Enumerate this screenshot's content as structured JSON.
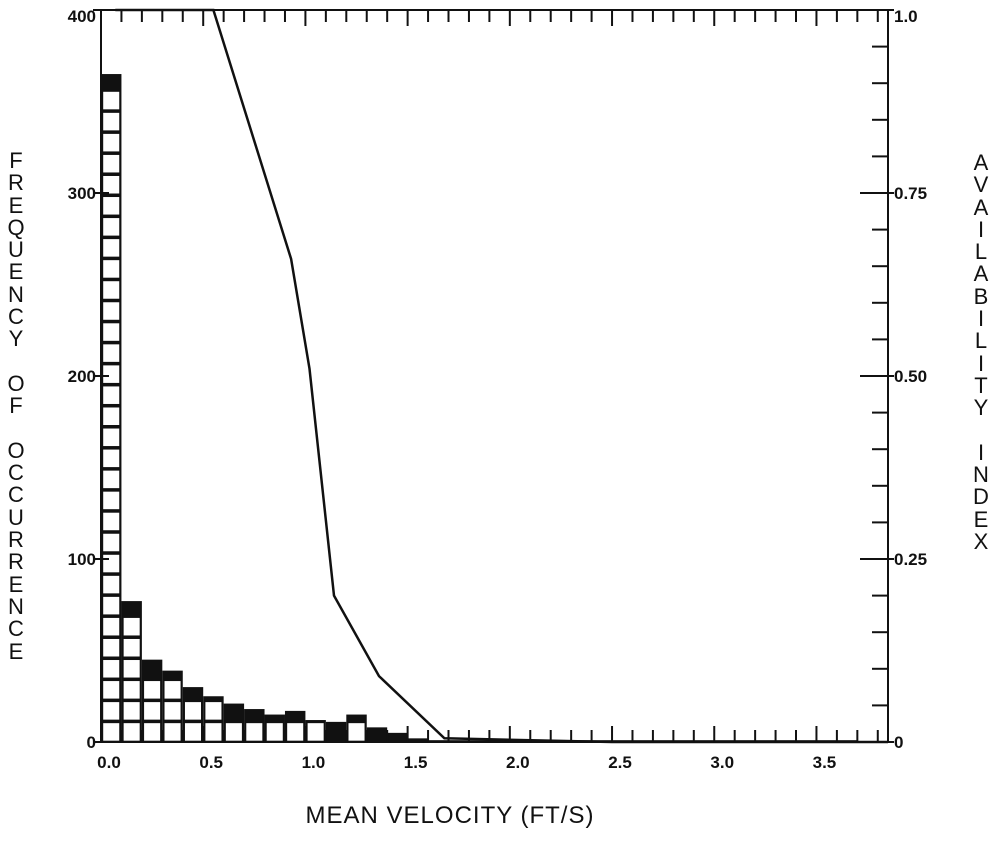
{
  "chart_data": {
    "type": "bar",
    "xlabel": "MEAN VELOCITY (FT/S)",
    "ylabel_left": "FREQUENCY OF OCCURRENCE",
    "ylabel_right": "AVAILABILITY INDEX",
    "x_range": [
      0.0,
      3.85
    ],
    "ylim_left": [
      0,
      400
    ],
    "ylim_right": [
      0,
      1.0
    ],
    "x_ticks": [
      "0.0",
      "0.5",
      "1.0",
      "1.5",
      "2.0",
      "2.5",
      "3.0",
      "3.5"
    ],
    "y_left_ticks": [
      "0",
      "100",
      "200",
      "300",
      "400"
    ],
    "y_right_ticks": [
      "0",
      "0.25",
      "0.50",
      "0.75",
      "1.0"
    ],
    "histogram": {
      "bin_width": 0.1,
      "bins": [
        {
          "x": 0.0,
          "frequency": 365
        },
        {
          "x": 0.1,
          "frequency": 77
        },
        {
          "x": 0.2,
          "frequency": 45
        },
        {
          "x": 0.3,
          "frequency": 39
        },
        {
          "x": 0.4,
          "frequency": 30
        },
        {
          "x": 0.5,
          "frequency": 25
        },
        {
          "x": 0.6,
          "frequency": 21
        },
        {
          "x": 0.7,
          "frequency": 18
        },
        {
          "x": 0.8,
          "frequency": 15
        },
        {
          "x": 0.9,
          "frequency": 17
        },
        {
          "x": 1.0,
          "frequency": 12
        },
        {
          "x": 1.1,
          "frequency": 11
        },
        {
          "x": 1.2,
          "frequency": 15
        },
        {
          "x": 1.3,
          "frequency": 8
        },
        {
          "x": 1.4,
          "frequency": 5
        },
        {
          "x": 1.5,
          "frequency": 2
        },
        {
          "x": 1.6,
          "frequency": 1
        },
        {
          "x": 1.7,
          "frequency": 1
        },
        {
          "x": 1.8,
          "frequency": 1
        },
        {
          "x": 1.9,
          "frequency": 1
        },
        {
          "x": 2.0,
          "frequency": 1
        },
        {
          "x": 2.1,
          "frequency": 1
        },
        {
          "x": 2.2,
          "frequency": 1
        },
        {
          "x": 2.3,
          "frequency": 1
        },
        {
          "x": 2.4,
          "frequency": 1
        },
        {
          "x": 2.5,
          "frequency": 1
        },
        {
          "x": 2.6,
          "frequency": 1
        },
        {
          "x": 2.7,
          "frequency": 1
        },
        {
          "x": 2.8,
          "frequency": 1
        },
        {
          "x": 2.9,
          "frequency": 1
        },
        {
          "x": 3.0,
          "frequency": 1
        },
        {
          "x": 3.1,
          "frequency": 1
        },
        {
          "x": 3.2,
          "frequency": 1
        },
        {
          "x": 3.3,
          "frequency": 1
        },
        {
          "x": 3.4,
          "frequency": 1
        },
        {
          "x": 3.5,
          "frequency": 1
        },
        {
          "x": 3.6,
          "frequency": 1
        }
      ]
    },
    "availability_curve": {
      "axis": "right",
      "points": [
        {
          "x": 0.07,
          "y": 1.0
        },
        {
          "x": 0.55,
          "y": 1.0
        },
        {
          "x": 0.93,
          "y": 0.66
        },
        {
          "x": 1.02,
          "y": 0.51
        },
        {
          "x": 1.14,
          "y": 0.2
        },
        {
          "x": 1.36,
          "y": 0.09
        },
        {
          "x": 1.68,
          "y": 0.005
        },
        {
          "x": 2.5,
          "y": 0.0
        },
        {
          "x": 3.85,
          "y": 0.0
        }
      ]
    },
    "grid": false
  },
  "colors": {
    "ink": "#111111",
    "background": "#ffffff"
  }
}
